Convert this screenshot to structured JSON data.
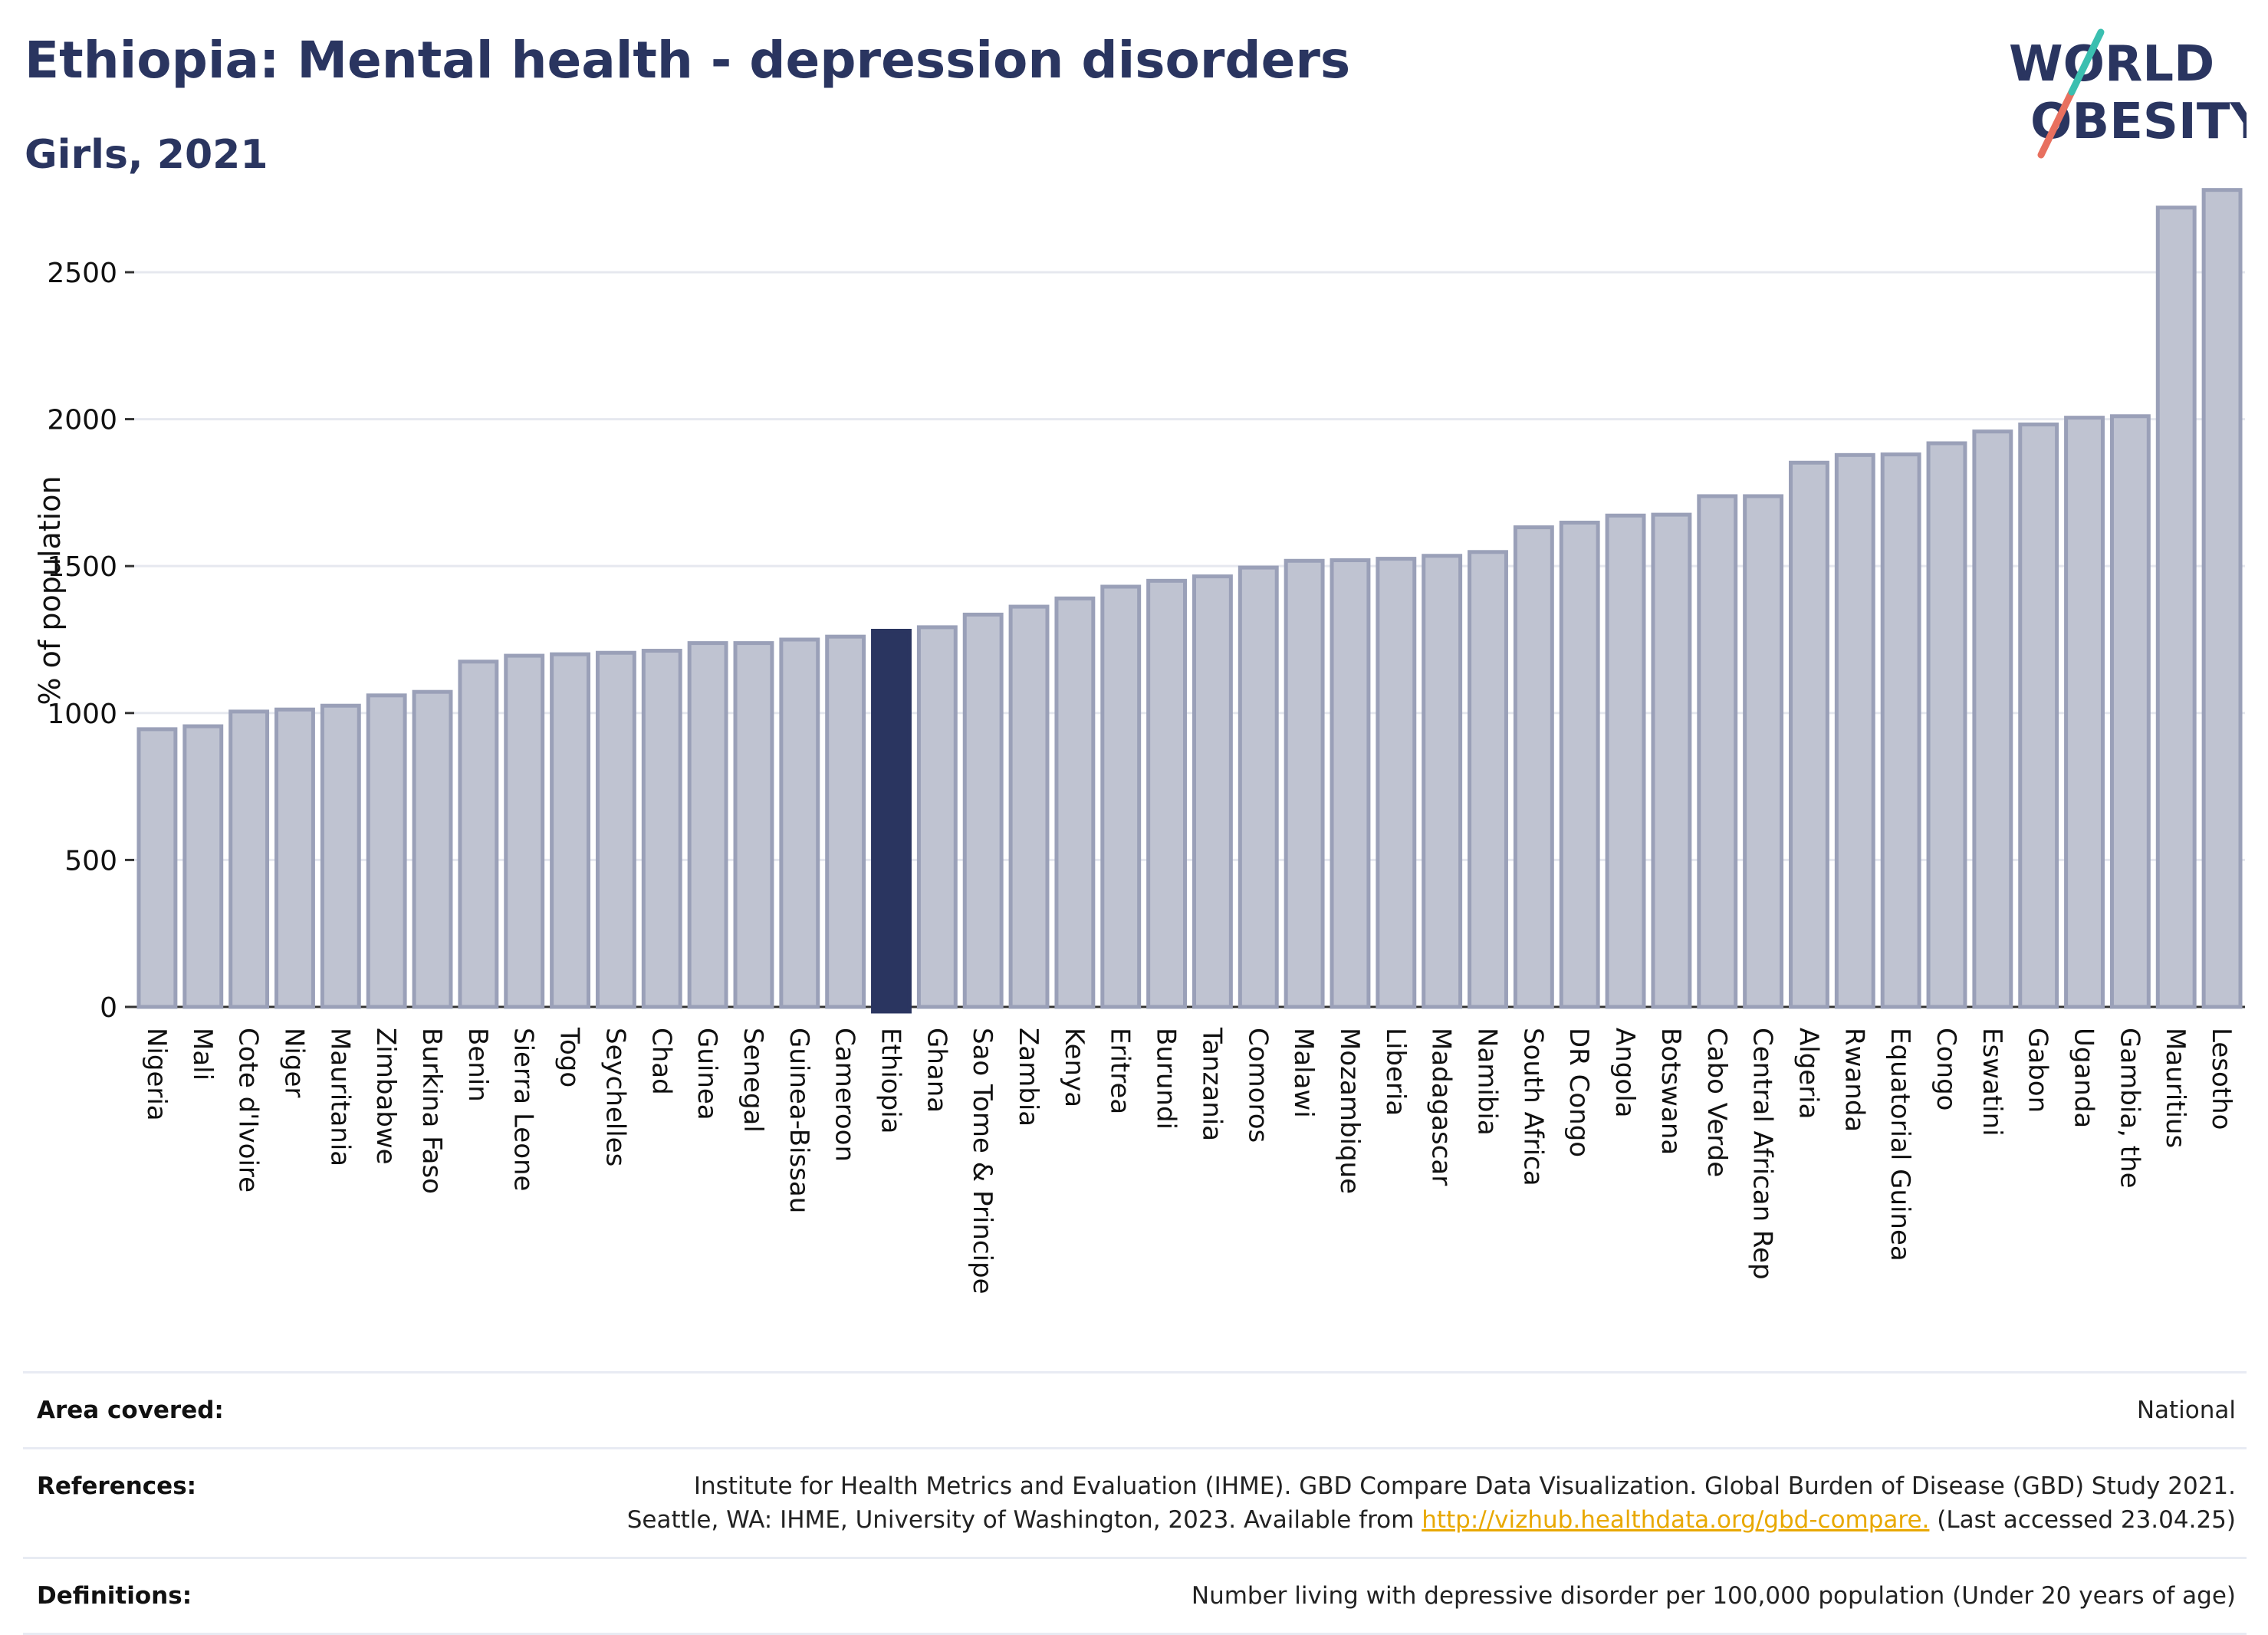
{
  "header": {
    "title": "Ethiopia: Mental health - depression disorders",
    "subtitle": "Girls, 2021"
  },
  "logo": {
    "line1": "WORLD",
    "line2": "OBESITY"
  },
  "colors": {
    "highlight": "#2a3560",
    "bar_fill": "#bfc3d1",
    "bar_stroke": "#9aa0b8",
    "grid": "#e6e8ef",
    "text": "#1f2a4d",
    "link": "#e8a800"
  },
  "chart_data": {
    "type": "bar",
    "title": "Ethiopia: Mental health - depression disorders",
    "subtitle": "Girls, 2021",
    "ylabel": "% of population",
    "xlabel": "",
    "ylim": [
      0,
      2800
    ],
    "yticks": [
      0,
      500,
      1000,
      1500,
      2000,
      2500
    ],
    "grid": true,
    "highlight": "Ethiopia",
    "categories": [
      "Nigeria",
      "Mali",
      "Cote d'Ivoire",
      "Niger",
      "Mauritania",
      "Zimbabwe",
      "Burkina Faso",
      "Benin",
      "Sierra Leone",
      "Togo",
      "Seychelles",
      "Chad",
      "Guinea",
      "Senegal",
      "Guinea-Bissau",
      "Cameroon",
      "Ethiopia",
      "Ghana",
      "Sao Tome & Principe",
      "Zambia",
      "Kenya",
      "Eritrea",
      "Burundi",
      "Tanzania",
      "Comoros",
      "Malawi",
      "Mozambique",
      "Liberia",
      "Madagascar",
      "Namibia",
      "South Africa",
      "DR Congo",
      "Angola",
      "Botswana",
      "Cabo Verde",
      "Central African Rep",
      "Algeria",
      "Rwanda",
      "Equatorial Guinea",
      "Congo",
      "Eswatini",
      "Gabon",
      "Uganda",
      "Gambia, the",
      "Mauritius",
      "Lesotho"
    ],
    "values": [
      945,
      955,
      1005,
      1012,
      1025,
      1060,
      1072,
      1175,
      1195,
      1200,
      1205,
      1212,
      1238,
      1238,
      1250,
      1260,
      1280,
      1292,
      1335,
      1362,
      1390,
      1430,
      1450,
      1465,
      1495,
      1518,
      1520,
      1525,
      1535,
      1548,
      1632,
      1648,
      1672,
      1675,
      1738,
      1738,
      1852,
      1878,
      1880,
      1918,
      1958,
      1982,
      2005,
      2010,
      2720,
      2780
    ]
  },
  "footer": {
    "rows": [
      {
        "label": "Area covered:",
        "lines": [
          "National"
        ]
      },
      {
        "label": "References:",
        "lines": [
          "Institute for Health Metrics and Evaluation (IHME). GBD Compare Data Visualization. Global Burden of Disease (GBD) Study 2021.",
          "Seattle, WA: IHME, University of Washington, 2023. Available from "
        ],
        "link": "http://vizhub.healthdata.org/gbd-compare.",
        "after_link": " (Last accessed 23.04.25)"
      },
      {
        "label": "Definitions:",
        "lines": [
          "Number living with depressive disorder per 100,000 population (Under 20 years of age)"
        ]
      }
    ]
  }
}
